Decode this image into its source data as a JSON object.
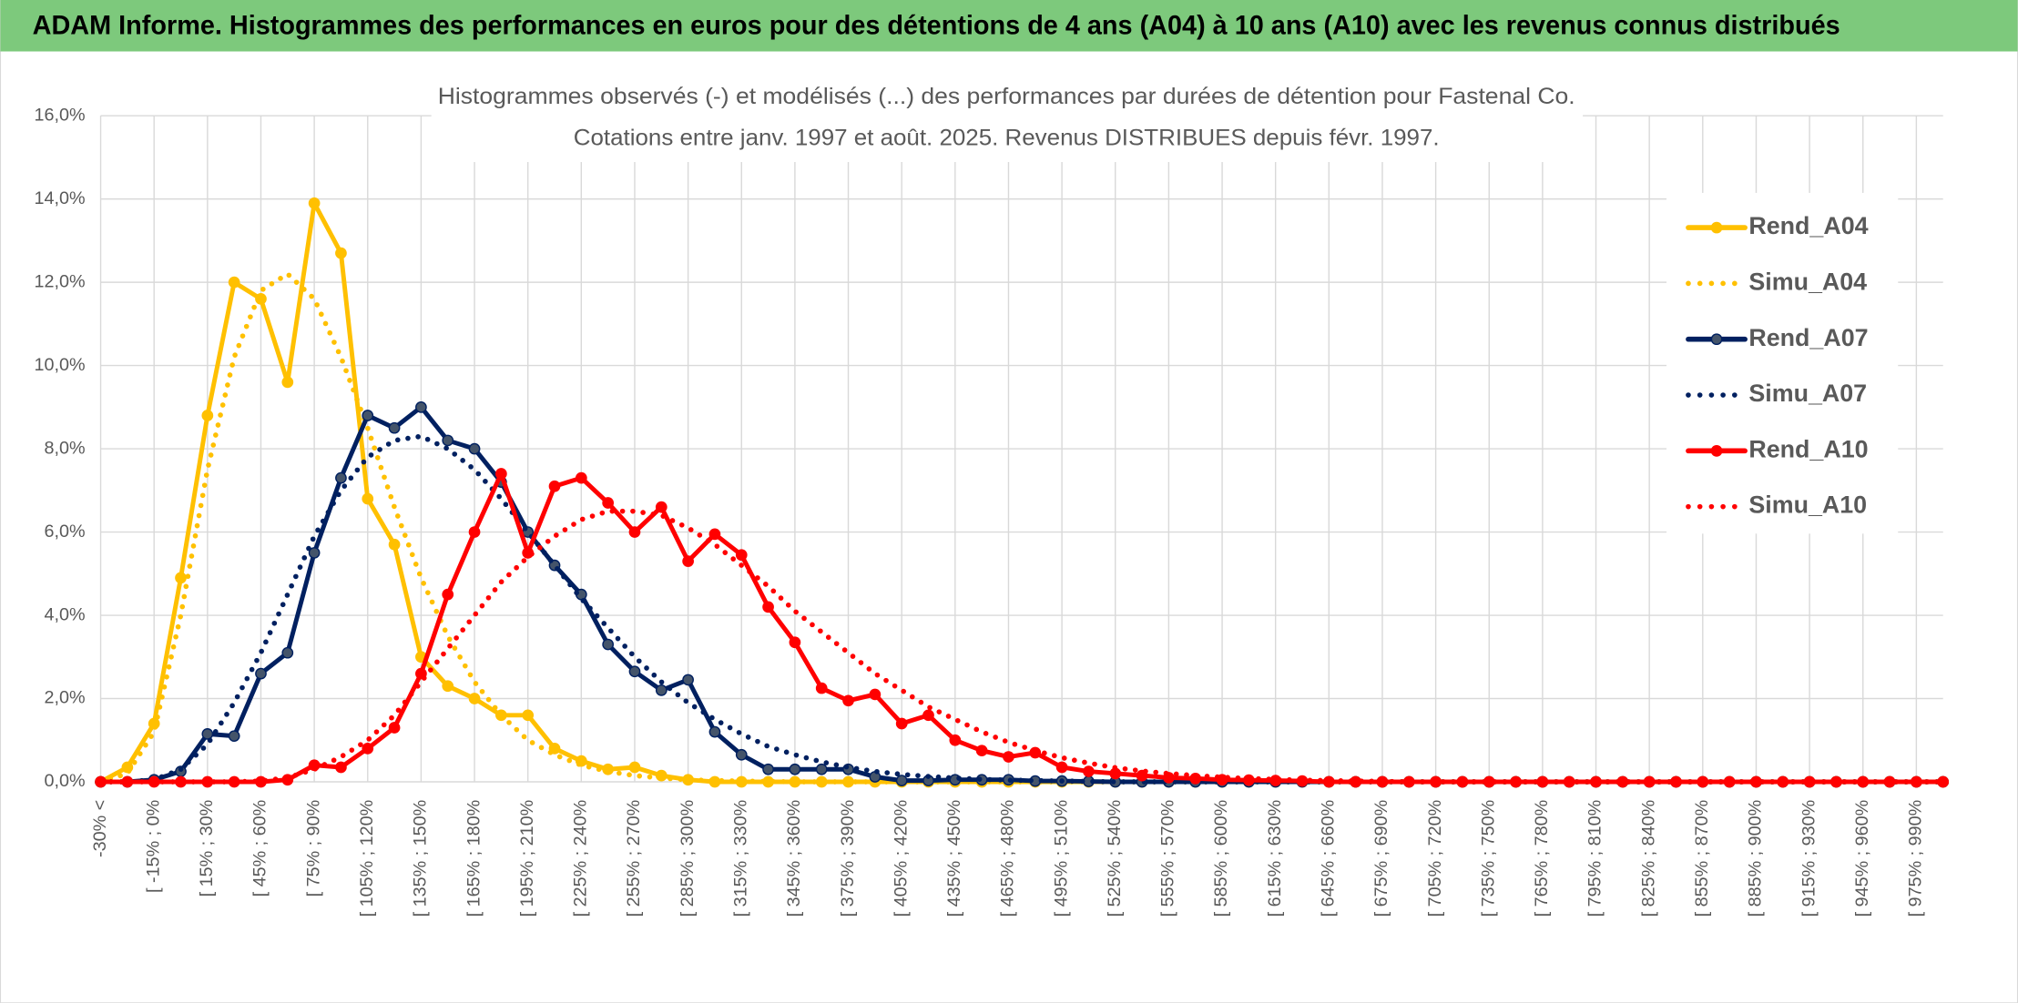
{
  "header": {
    "title": "ADAM Informe. Histogrammes des performances en euros pour des détentions de 4 ans (A04) à 10 ans (A10) avec les revenus connus distribués"
  },
  "chart_data": {
    "type": "line",
    "title": "Histogrammes observés (-) et modélisés (...) des performances par durées de détention pour Fastenal Co.",
    "subtitle": "Cotations entre janv. 1997 et août. 2025. Revenus DISTRIBUES depuis févr. 1997.",
    "categories": [
      "-30% <",
      null,
      "[ -15% ; 0%",
      null,
      "[ 15% ; 30%",
      null,
      "[ 45% ; 60%",
      null,
      "[ 75% ; 90%",
      null,
      "[ 105% ; 120%",
      null,
      "[ 135% ; 150%",
      null,
      "[ 165% ; 180%",
      null,
      "[ 195% ; 210%",
      null,
      "[ 225% ; 240%",
      null,
      "[ 255% ; 270%",
      null,
      "[ 285% ; 300%",
      null,
      "[ 315% ; 330%",
      null,
      "[ 345% ; 360%",
      null,
      "[ 375% ; 390%",
      null,
      "[ 405% ; 420%",
      null,
      "[ 435% ; 450%",
      null,
      "[ 465% ; 480%",
      null,
      "[ 495% ; 510%",
      null,
      "[ 525% ; 540%",
      null,
      "[ 555% ; 570%",
      null,
      "[ 585% ; 600%",
      null,
      "[ 615% ; 630%",
      null,
      "[ 645% ; 660%",
      null,
      "[ 675% ; 690%",
      null,
      "[ 705% ; 720%",
      null,
      "[ 735% ; 750%",
      null,
      "[ 765% ; 780%",
      null,
      "[ 795% ; 810%",
      null,
      "[ 825% ; 840%",
      null,
      "[ 855% ; 870%",
      null,
      "[ 885% ; 900%",
      null,
      "[ 915% ; 930%",
      null,
      "[ 945% ; 960%",
      null,
      "[ 975% ; 990%",
      null
    ],
    "series": [
      {
        "name": "Rend_A04",
        "color": "#FFC000",
        "marker_color": "#FFC000",
        "style": "solid",
        "markers": true,
        "values": [
          0,
          0.35,
          1.4,
          4.9,
          8.8,
          12.0,
          11.6,
          9.6,
          13.9,
          12.7,
          6.8,
          5.7,
          3.0,
          2.3,
          2.0,
          1.6,
          1.6,
          0.8,
          0.5,
          0.3,
          0.35,
          0.15,
          0.05,
          0,
          0,
          0,
          0,
          0,
          0,
          0,
          0,
          0,
          0,
          0,
          0,
          0,
          0,
          0,
          0,
          0,
          0,
          0,
          0,
          0,
          0,
          0,
          0,
          0,
          0,
          0,
          0,
          0,
          0,
          0,
          0,
          0,
          0,
          0,
          0,
          0,
          0,
          0,
          0,
          0,
          0,
          0,
          0,
          0,
          0,
          0
        ]
      },
      {
        "name": "Simu_A04",
        "color": "#FFC000",
        "style": "dotted",
        "markers": false,
        "values": [
          0,
          0.2,
          1.2,
          4.0,
          7.5,
          10.2,
          11.8,
          12.2,
          11.6,
          10.2,
          8.5,
          6.6,
          4.9,
          3.5,
          2.4,
          1.6,
          1.0,
          0.65,
          0.4,
          0.25,
          0.15,
          0.09,
          0.05,
          0.03,
          0.02,
          0.01,
          0,
          0,
          0,
          0,
          0,
          0,
          0,
          0,
          0,
          0,
          0,
          0,
          0,
          0,
          0,
          0,
          0,
          0,
          0,
          0,
          0,
          0,
          0,
          0,
          0,
          0,
          0,
          0,
          0,
          0,
          0,
          0,
          0,
          0,
          0,
          0,
          0,
          0,
          0,
          0,
          0,
          0,
          0,
          0
        ]
      },
      {
        "name": "Rend_A07",
        "color": "#002060",
        "marker_color": "#44546A",
        "style": "solid",
        "markers": true,
        "values": [
          0,
          0,
          0.05,
          0.25,
          1.15,
          1.1,
          2.6,
          3.1,
          5.5,
          7.3,
          8.8,
          8.5,
          9.0,
          8.2,
          8.0,
          7.2,
          6.0,
          5.2,
          4.5,
          3.3,
          2.65,
          2.2,
          2.45,
          1.2,
          0.65,
          0.3,
          0.3,
          0.3,
          0.3,
          0.12,
          0.03,
          0.03,
          0.05,
          0.05,
          0.05,
          0.02,
          0.02,
          0.01,
          0,
          0,
          0,
          0,
          0,
          0,
          0,
          0,
          0,
          0,
          0,
          0,
          0,
          0,
          0,
          0,
          0,
          0,
          0,
          0,
          0,
          0,
          0,
          0,
          0,
          0,
          0,
          0,
          0,
          0,
          0,
          0
        ]
      },
      {
        "name": "Simu_A07",
        "color": "#002060",
        "style": "dotted",
        "markers": false,
        "values": [
          0,
          0,
          0.05,
          0.3,
          0.9,
          1.9,
          3.1,
          4.5,
          5.9,
          7.0,
          7.8,
          8.2,
          8.3,
          8.0,
          7.5,
          6.8,
          6.0,
          5.2,
          4.4,
          3.7,
          3.0,
          2.4,
          1.9,
          1.5,
          1.15,
          0.85,
          0.65,
          0.48,
          0.35,
          0.25,
          0.18,
          0.13,
          0.09,
          0.06,
          0.04,
          0.03,
          0.02,
          0.01,
          0,
          0,
          0,
          0,
          0,
          0,
          0,
          0,
          0,
          0,
          0,
          0,
          0,
          0,
          0,
          0,
          0,
          0,
          0,
          0,
          0,
          0,
          0,
          0,
          0,
          0,
          0,
          0,
          0,
          0,
          0,
          0
        ]
      },
      {
        "name": "Rend_A10",
        "color": "#FF0000",
        "marker_color": "#FF0000",
        "style": "solid",
        "markers": true,
        "values": [
          0,
          0,
          0,
          0,
          0,
          0,
          0,
          0.05,
          0.4,
          0.35,
          0.8,
          1.3,
          2.6,
          4.5,
          6.0,
          7.4,
          5.5,
          7.1,
          7.3,
          6.7,
          6.0,
          6.6,
          5.3,
          5.95,
          5.45,
          4.2,
          3.35,
          2.25,
          1.95,
          2.1,
          1.4,
          1.6,
          1.0,
          0.75,
          0.6,
          0.7,
          0.35,
          0.25,
          0.2,
          0.15,
          0.1,
          0.08,
          0.05,
          0.04,
          0.03,
          0.02,
          0,
          0,
          0,
          0,
          0,
          0,
          0,
          0,
          0,
          0,
          0,
          0,
          0,
          0,
          0,
          0,
          0,
          0,
          0,
          0,
          0,
          0,
          0,
          0
        ]
      },
      {
        "name": "Simu_A10",
        "color": "#FF0000",
        "style": "dotted",
        "markers": false,
        "values": [
          0,
          0,
          0,
          0,
          0,
          0,
          0.02,
          0.1,
          0.3,
          0.6,
          1.0,
          1.6,
          2.4,
          3.2,
          4.0,
          4.8,
          5.4,
          5.9,
          6.3,
          6.5,
          6.5,
          6.4,
          6.1,
          5.7,
          5.2,
          4.7,
          4.1,
          3.6,
          3.1,
          2.6,
          2.2,
          1.8,
          1.5,
          1.2,
          0.95,
          0.75,
          0.58,
          0.45,
          0.34,
          0.26,
          0.2,
          0.15,
          0.11,
          0.08,
          0.06,
          0.04,
          0.03,
          0.02,
          0.01,
          0,
          0,
          0,
          0,
          0,
          0,
          0,
          0,
          0,
          0,
          0,
          0,
          0,
          0,
          0,
          0,
          0,
          0,
          0,
          0,
          0
        ]
      }
    ],
    "ylim": [
      0,
      16
    ],
    "yticks": [
      {
        "value": 0,
        "label": "0,0%"
      },
      {
        "value": 2,
        "label": "2,0%"
      },
      {
        "value": 4,
        "label": "4,0%"
      },
      {
        "value": 6,
        "label": "6,0%"
      },
      {
        "value": 8,
        "label": "8,0%"
      },
      {
        "value": 10,
        "label": "10,0%"
      },
      {
        "value": 12,
        "label": "12,0%"
      },
      {
        "value": 14,
        "label": "14,0%"
      },
      {
        "value": 16,
        "label": "16,0%"
      }
    ],
    "grid": true,
    "legend": "right"
  }
}
